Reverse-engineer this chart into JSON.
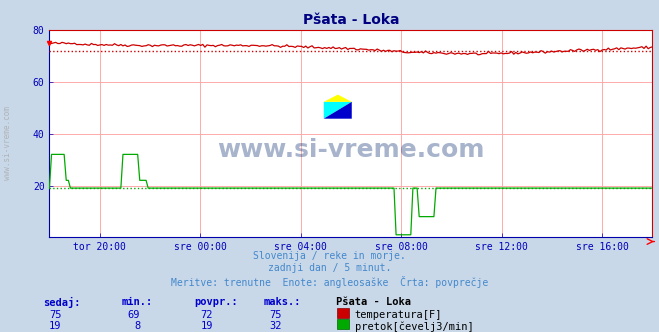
{
  "title": "Pšata - Loka",
  "title_color": "#000080",
  "bg_color": "#c8d8e8",
  "plot_bg_color": "#ffffff",
  "grid_color": "#ffaaaa",
  "tick_color": "#0000bb",
  "temp_color": "#cc0000",
  "temp_avg_value": 72,
  "flow_color": "#00aa00",
  "flow_avg_value": 19,
  "x_ticks_labels": [
    "tor 20:00",
    "sre 00:00",
    "sre 04:00",
    "sre 08:00",
    "sre 12:00",
    "sre 16:00"
  ],
  "x_ticks_pos": [
    0.0833,
    0.25,
    0.4167,
    0.5833,
    0.75,
    0.9167
  ],
  "ylim": [
    0,
    80
  ],
  "y_ticks": [
    20,
    40,
    60,
    80
  ],
  "footer_lines": [
    "Slovenija / reke in morje.",
    "zadnji dan / 5 minut.",
    "Meritve: trenutne  Enote: angleosaške  Črta: povprečje"
  ],
  "footer_color": "#4488cc",
  "table_headers": [
    "sedaj:",
    "min.:",
    "povpr.:",
    "maks.:"
  ],
  "table_header_color": "#0000cc",
  "table_row1": [
    "75",
    "69",
    "72",
    "75"
  ],
  "table_row2": [
    "19",
    "8",
    "19",
    "32"
  ],
  "table_label": "Pšata - Loka",
  "legend_temp": "temperatura[F]",
  "legend_flow": "pretok[čevelj3/min]",
  "watermark_text": "www.si-vreme.com",
  "watermark_color": "#1a3a7a",
  "sidebar_text": "www.si-vreme.com"
}
